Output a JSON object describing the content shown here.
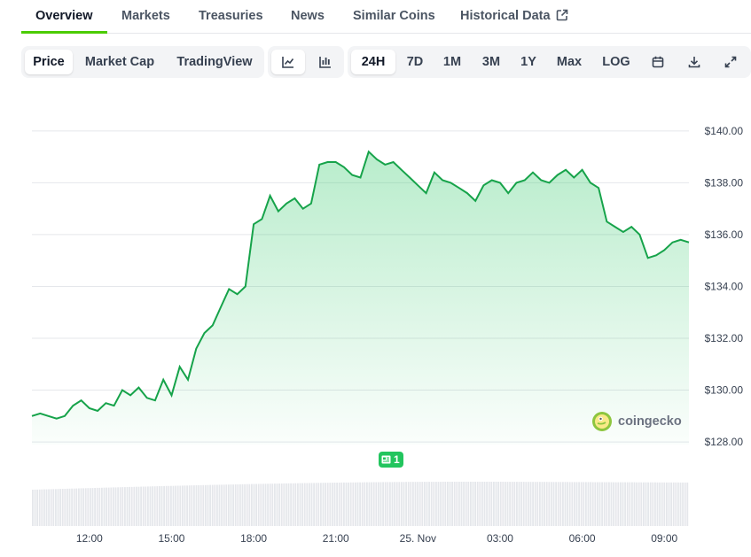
{
  "tabs": [
    {
      "label": "Overview"
    },
    {
      "label": "Markets"
    },
    {
      "label": "Treasuries"
    },
    {
      "label": "News"
    },
    {
      "label": "Similar Coins"
    },
    {
      "label": "Historical Data"
    }
  ],
  "toolbar": {
    "views": [
      "Price",
      "Market Cap",
      "TradingView"
    ],
    "chart_types": [
      "line-chart-icon",
      "candlestick-icon"
    ],
    "ranges": [
      "24H",
      "7D",
      "1M",
      "3M",
      "1Y",
      "Max",
      "LOG"
    ],
    "actions": [
      "calendar-icon",
      "download-icon",
      "expand-icon"
    ],
    "active_view": "Price",
    "active_range": "24H"
  },
  "watermark": "coingecko",
  "event_badge": "1",
  "colors": {
    "line": "#16a34a",
    "fill": "#22c55e",
    "accent": "#4bcc00",
    "volume": "#e5e7eb"
  },
  "chart_data": {
    "type": "line",
    "y_ticks": [
      "$140.00",
      "$138.00",
      "$136.00",
      "$134.00",
      "$132.00",
      "$130.00",
      "$128.00"
    ],
    "y_values": [
      140,
      138,
      136,
      134,
      132,
      130,
      128
    ],
    "ylim": [
      127.9,
      140.2
    ],
    "x_ticks": [
      "12:00",
      "15:00",
      "18:00",
      "21:00",
      "25. Nov",
      "03:00",
      "06:00",
      "09:00"
    ],
    "x_tick_hours": [
      12,
      15,
      18,
      21,
      24,
      27,
      30,
      33
    ],
    "xlim_hours": [
      9.9,
      33.9
    ],
    "series": [
      {
        "x": [
          9.9,
          10.2,
          10.5,
          10.8,
          11.1,
          11.4,
          11.7,
          12.0,
          12.3,
          12.6,
          12.9,
          13.2,
          13.5,
          13.8,
          14.1,
          14.4,
          14.7,
          15.0,
          15.3,
          15.6,
          15.9,
          16.2,
          16.5,
          16.8,
          17.1,
          17.4,
          17.7,
          18.0,
          18.3,
          18.6,
          18.9,
          19.2,
          19.5,
          19.8,
          20.1,
          20.4,
          20.7,
          21.0,
          21.3,
          21.6,
          21.9,
          22.2,
          22.5,
          22.8,
          23.1,
          23.4,
          23.7,
          24.0,
          24.3,
          24.6,
          24.9,
          25.2,
          25.5,
          25.8,
          26.1,
          26.4,
          26.7,
          27.0,
          27.3,
          27.6,
          27.9,
          28.2,
          28.5,
          28.8,
          29.1,
          29.4,
          29.7,
          30.0,
          30.3,
          30.6,
          30.9,
          31.2,
          31.5,
          31.8,
          32.1,
          32.4,
          32.7,
          33.0,
          33.3,
          33.6,
          33.9
        ],
        "y": [
          129.0,
          129.1,
          129.0,
          128.9,
          129.0,
          129.4,
          129.6,
          129.3,
          129.2,
          129.5,
          129.4,
          130.0,
          129.8,
          130.1,
          129.7,
          129.6,
          130.4,
          129.8,
          130.9,
          130.4,
          131.6,
          132.2,
          132.5,
          133.2,
          133.9,
          133.7,
          134.0,
          136.4,
          136.6,
          137.5,
          136.9,
          137.2,
          137.4,
          137.0,
          137.2,
          138.7,
          138.8,
          138.8,
          138.6,
          138.3,
          138.2,
          139.2,
          138.9,
          138.7,
          138.8,
          138.5,
          138.2,
          137.9,
          137.6,
          138.4,
          138.1,
          138.0,
          137.8,
          137.6,
          137.3,
          137.9,
          138.1,
          138.0,
          137.6,
          138.0,
          138.1,
          138.4,
          138.1,
          138.0,
          138.3,
          138.5,
          138.2,
          138.5,
          138.0,
          137.8,
          136.5,
          136.3,
          136.1,
          136.3,
          136.0,
          135.1,
          135.2,
          135.4,
          135.7,
          135.8,
          135.7
        ]
      }
    ]
  }
}
